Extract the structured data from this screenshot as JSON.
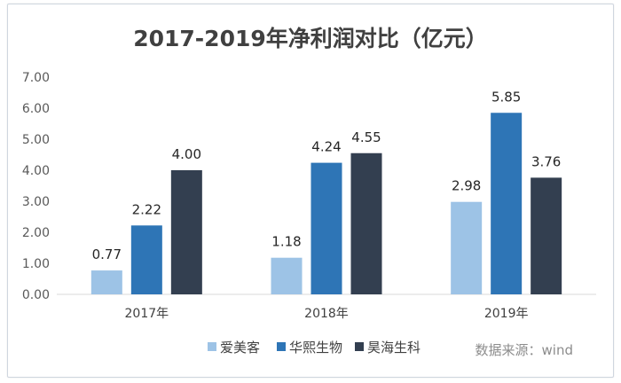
{
  "chart_data": {
    "type": "bar",
    "title": "2017-2019年净利润对比（亿元）",
    "categories": [
      "2017年",
      "2018年",
      "2019年"
    ],
    "series": [
      {
        "name": "爱美客",
        "values": [
          0.77,
          1.18,
          2.98
        ],
        "color": "#9dc3e6"
      },
      {
        "name": "华熙生物",
        "values": [
          2.22,
          4.24,
          5.85
        ],
        "color": "#2e75b6"
      },
      {
        "name": "昊海生科",
        "values": [
          4.0,
          4.55,
          3.76
        ],
        "color": "#333f50"
      }
    ],
    "ylim": [
      0,
      7
    ],
    "yticks": [
      "0.00",
      "1.00",
      "2.00",
      "3.00",
      "4.00",
      "5.00",
      "6.00",
      "7.00"
    ],
    "grid": false,
    "legend_position": "bottom",
    "xlabel": "",
    "ylabel": ""
  },
  "source_note": "数据来源：wind"
}
